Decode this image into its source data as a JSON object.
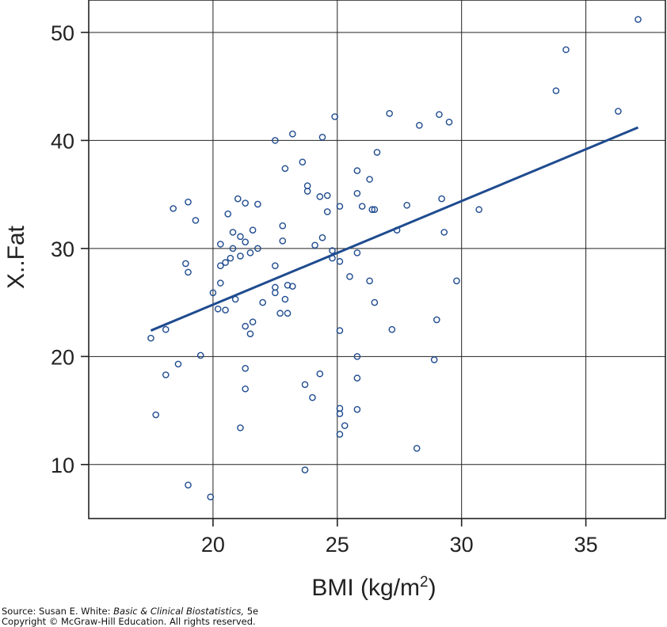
{
  "chart_data": {
    "type": "scatter",
    "xlabel": "BMI (kg/m",
    "xlabel_superscript": "2",
    "xlabel_close": ")",
    "ylabel": "X..Fat",
    "xlim": [
      15,
      38.2
    ],
    "ylim": [
      5,
      53
    ],
    "x_ticks": [
      20,
      25,
      30,
      35
    ],
    "y_ticks": [
      10,
      20,
      30,
      40,
      50
    ],
    "grid": true,
    "marker": "open-circle",
    "point_color": "#1f4b8f",
    "line_color": "#1f4b8f",
    "fit_line": {
      "x": [
        17.5,
        37.1
      ],
      "y": [
        22.4,
        41.2
      ]
    },
    "points": [
      {
        "x": 17.5,
        "y": 21.7
      },
      {
        "x": 17.7,
        "y": 14.6
      },
      {
        "x": 18.1,
        "y": 22.5
      },
      {
        "x": 18.1,
        "y": 18.3
      },
      {
        "x": 18.4,
        "y": 33.7
      },
      {
        "x": 18.6,
        "y": 19.3
      },
      {
        "x": 18.9,
        "y": 28.6
      },
      {
        "x": 19.0,
        "y": 34.3
      },
      {
        "x": 19.0,
        "y": 27.8
      },
      {
        "x": 19.0,
        "y": 8.1
      },
      {
        "x": 19.3,
        "y": 32.6
      },
      {
        "x": 19.5,
        "y": 20.1
      },
      {
        "x": 19.9,
        "y": 7.0
      },
      {
        "x": 20.0,
        "y": 25.9
      },
      {
        "x": 20.2,
        "y": 24.4
      },
      {
        "x": 20.3,
        "y": 30.4
      },
      {
        "x": 20.3,
        "y": 28.4
      },
      {
        "x": 20.3,
        "y": 26.8
      },
      {
        "x": 20.5,
        "y": 28.7
      },
      {
        "x": 20.5,
        "y": 24.3
      },
      {
        "x": 20.6,
        "y": 33.2
      },
      {
        "x": 20.7,
        "y": 29.1
      },
      {
        "x": 20.8,
        "y": 31.5
      },
      {
        "x": 20.8,
        "y": 30.0
      },
      {
        "x": 20.9,
        "y": 25.3
      },
      {
        "x": 21.0,
        "y": 34.6
      },
      {
        "x": 21.1,
        "y": 31.1
      },
      {
        "x": 21.1,
        "y": 29.3
      },
      {
        "x": 21.1,
        "y": 13.4
      },
      {
        "x": 21.3,
        "y": 34.2
      },
      {
        "x": 21.3,
        "y": 30.6
      },
      {
        "x": 21.3,
        "y": 22.8
      },
      {
        "x": 21.3,
        "y": 18.9
      },
      {
        "x": 21.3,
        "y": 17.0
      },
      {
        "x": 21.5,
        "y": 29.6
      },
      {
        "x": 21.5,
        "y": 22.1
      },
      {
        "x": 21.6,
        "y": 31.7
      },
      {
        "x": 21.6,
        "y": 23.2
      },
      {
        "x": 21.8,
        "y": 34.1
      },
      {
        "x": 21.8,
        "y": 30.0
      },
      {
        "x": 22.0,
        "y": 25.0
      },
      {
        "x": 22.5,
        "y": 40.0
      },
      {
        "x": 22.5,
        "y": 28.4
      },
      {
        "x": 22.5,
        "y": 26.4
      },
      {
        "x": 22.5,
        "y": 25.9
      },
      {
        "x": 22.7,
        "y": 24.0
      },
      {
        "x": 22.8,
        "y": 32.1
      },
      {
        "x": 22.8,
        "y": 30.7
      },
      {
        "x": 22.9,
        "y": 37.4
      },
      {
        "x": 22.9,
        "y": 25.3
      },
      {
        "x": 23.0,
        "y": 26.6
      },
      {
        "x": 23.0,
        "y": 24.0
      },
      {
        "x": 23.2,
        "y": 40.6
      },
      {
        "x": 23.2,
        "y": 26.5
      },
      {
        "x": 23.6,
        "y": 38.0
      },
      {
        "x": 23.7,
        "y": 17.4
      },
      {
        "x": 23.7,
        "y": 9.5
      },
      {
        "x": 23.8,
        "y": 35.8
      },
      {
        "x": 23.8,
        "y": 35.3
      },
      {
        "x": 24.0,
        "y": 16.2
      },
      {
        "x": 24.1,
        "y": 30.3
      },
      {
        "x": 24.3,
        "y": 34.8
      },
      {
        "x": 24.3,
        "y": 18.4
      },
      {
        "x": 24.4,
        "y": 40.3
      },
      {
        "x": 24.4,
        "y": 31.0
      },
      {
        "x": 24.6,
        "y": 34.9
      },
      {
        "x": 24.6,
        "y": 33.4
      },
      {
        "x": 24.8,
        "y": 29.8
      },
      {
        "x": 24.8,
        "y": 29.1
      },
      {
        "x": 24.9,
        "y": 42.2
      },
      {
        "x": 25.1,
        "y": 33.9
      },
      {
        "x": 25.1,
        "y": 28.8
      },
      {
        "x": 25.1,
        "y": 22.4
      },
      {
        "x": 25.1,
        "y": 15.2
      },
      {
        "x": 25.1,
        "y": 14.7
      },
      {
        "x": 25.1,
        "y": 12.8
      },
      {
        "x": 25.3,
        "y": 13.6
      },
      {
        "x": 25.5,
        "y": 27.4
      },
      {
        "x": 25.8,
        "y": 37.2
      },
      {
        "x": 25.8,
        "y": 35.1
      },
      {
        "x": 25.8,
        "y": 29.6
      },
      {
        "x": 25.8,
        "y": 20.0
      },
      {
        "x": 25.8,
        "y": 18.0
      },
      {
        "x": 25.8,
        "y": 15.1
      },
      {
        "x": 26.0,
        "y": 33.9
      },
      {
        "x": 26.3,
        "y": 36.4
      },
      {
        "x": 26.3,
        "y": 27.0
      },
      {
        "x": 26.4,
        "y": 33.6
      },
      {
        "x": 26.5,
        "y": 33.6
      },
      {
        "x": 26.5,
        "y": 25.0
      },
      {
        "x": 26.6,
        "y": 38.9
      },
      {
        "x": 27.1,
        "y": 42.5
      },
      {
        "x": 27.2,
        "y": 22.5
      },
      {
        "x": 27.4,
        "y": 31.7
      },
      {
        "x": 27.8,
        "y": 34.0
      },
      {
        "x": 28.2,
        "y": 11.5
      },
      {
        "x": 28.3,
        "y": 41.4
      },
      {
        "x": 28.9,
        "y": 19.7
      },
      {
        "x": 29.0,
        "y": 23.4
      },
      {
        "x": 29.1,
        "y": 42.4
      },
      {
        "x": 29.2,
        "y": 34.6
      },
      {
        "x": 29.3,
        "y": 31.5
      },
      {
        "x": 29.5,
        "y": 41.7
      },
      {
        "x": 29.8,
        "y": 27.0
      },
      {
        "x": 30.7,
        "y": 33.6
      },
      {
        "x": 33.8,
        "y": 44.6
      },
      {
        "x": 34.2,
        "y": 48.4
      },
      {
        "x": 36.3,
        "y": 42.7
      },
      {
        "x": 37.1,
        "y": 51.2
      }
    ]
  },
  "source": {
    "prefix": "Source: Susan E. White: ",
    "book_title": "Basic & Clinical Biostatistics,",
    "edition": " 5e",
    "copyright": "Copyright © McGraw-Hill Education. All rights reserved."
  }
}
